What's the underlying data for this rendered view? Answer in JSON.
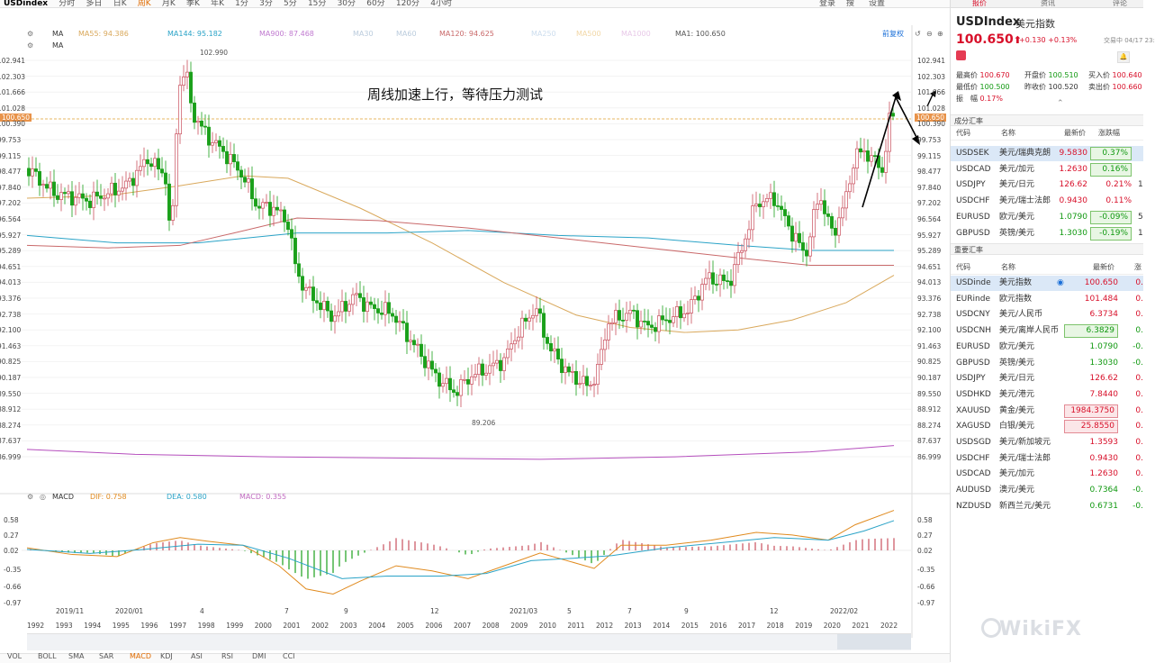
{
  "toolbar": {
    "items": [
      "USDindex",
      "分时",
      "多日",
      "日K",
      "周K",
      "月K",
      "季K",
      "年K",
      "1分",
      "3分",
      "5分",
      "15分",
      "30分",
      "60分",
      "120分",
      "4小时"
    ],
    "right_items": [
      "登录",
      "搜",
      "设置"
    ]
  },
  "indicators": {
    "ma_label": "MA",
    "ma_label2": "MA",
    "ma55": "MA55: 94.386",
    "ma144": "MA144: 95.182",
    "ma900": "MA900: 87.468",
    "ma30": "MA30",
    "ma60": "MA60",
    "ma120": "MA120: 94.625",
    "ma250": "MA250",
    "ma500": "MA500",
    "ma1000": "MA1000",
    "ma1": "MA1: 100.650",
    "right_rights": "前复权"
  },
  "macd": {
    "label": "MACD",
    "dif": "DIF: 0.758",
    "dea": "DEA: 0.580",
    "macd": "MACD: 0.355"
  },
  "annotation": "周线加速上行，等待压力测试",
  "peak_label": "102.990",
  "trough_label": "89.206",
  "current_line_label": "100.650",
  "current_line_label_right": "100.650",
  "price_axis_left": [
    "102.941",
    "102.303",
    "101.666",
    "101.028",
    "100.390",
    "99.753",
    "99.115",
    "98.477",
    "97.840",
    "97.202",
    "96.564",
    "95.927",
    "95.289",
    "94.651",
    "94.013",
    "93.376",
    "92.738",
    "92.100",
    "91.463",
    "90.825",
    "90.187",
    "89.550",
    "88.912",
    "88.274",
    "87.637",
    "86.999"
  ],
  "price_axis_right": [
    "102.941",
    "102.303",
    "101.666",
    "101.028",
    "100.390",
    "99.753",
    "99.115",
    "98.477",
    "97.840",
    "97.202",
    "96.564",
    "95.927",
    "95.289",
    "94.651",
    "94.013",
    "93.376",
    "92.738",
    "92.100",
    "91.463",
    "90.825",
    "90.187",
    "89.550",
    "88.912",
    "88.274",
    "87.637",
    "86.999"
  ],
  "macd_axis": [
    "0.58",
    "0.27",
    "0.02",
    "-0.35",
    "-0.66",
    "-0.97"
  ],
  "date_labels": [
    "2019/11",
    "2020/01",
    "4",
    "7",
    "9",
    "12",
    "2021/03",
    "5",
    "7",
    "9",
    "12",
    "2022/02"
  ],
  "year_labels": [
    "1992",
    "1993",
    "1994",
    "1995",
    "1996",
    "1997",
    "1998",
    "1999",
    "2000",
    "2001",
    "2002",
    "2003",
    "2004",
    "2005",
    "2006",
    "2007",
    "2008",
    "2009",
    "2010",
    "2011",
    "2012",
    "2013",
    "2014",
    "2015",
    "2016",
    "2017",
    "2018",
    "2019",
    "2020",
    "2021",
    "2022"
  ],
  "bottom_tabs": [
    "VOL",
    "BOLL",
    "SMA",
    "SAR",
    "MACD",
    "KDJ",
    "ASI",
    "RSI",
    "DMI",
    "CCI"
  ],
  "watermark": "WikiFX",
  "quote": {
    "tabs": [
      "报价",
      "资讯",
      "评论"
    ],
    "symbol": "USDIndex",
    "name_cn": "美元指数",
    "price": "100.650",
    "arrow": "⬆",
    "change": "+0.130 +0.13%",
    "trading_status": "交易中 04/17 23:",
    "high_label": "最高价",
    "high": "100.670",
    "open_label": "开盘价",
    "open": "100.510",
    "buy_label": "买入价",
    "buy": "100.640",
    "low_label": "最低价",
    "low": "100.500",
    "prev_label": "昨收价",
    "prev": "100.520",
    "sell_label": "卖出价",
    "sell": "100.660",
    "amp_label": "振　幅",
    "amp": "0.17%"
  },
  "components": {
    "title": "成分汇率",
    "headers": [
      "代码",
      "名称",
      "最新价",
      "涨跌幅"
    ],
    "rows": [
      {
        "code": "USDSEK",
        "name": "美元/瑞典克朗",
        "price": "9.5830",
        "pct": "0.37%",
        "dir": "up",
        "boxed": true,
        "extra": ""
      },
      {
        "code": "USDCAD",
        "name": "美元/加元",
        "price": "1.2630",
        "pct": "0.16%",
        "dir": "up",
        "boxed": true,
        "extra": ""
      },
      {
        "code": "USDJPY",
        "name": "美元/日元",
        "price": "126.62",
        "pct": "0.21%",
        "dir": "up",
        "boxed": false,
        "extra": "1"
      },
      {
        "code": "USDCHF",
        "name": "美元/瑞士法郎",
        "price": "0.9430",
        "pct": "0.11%",
        "dir": "up",
        "boxed": false,
        "extra": ""
      },
      {
        "code": "EURUSD",
        "name": "欧元/美元",
        "price": "1.0790",
        "pct": "-0.09%",
        "dir": "down",
        "boxed": true,
        "extra": "5"
      },
      {
        "code": "GBPUSD",
        "name": "英镑/美元",
        "price": "1.3030",
        "pct": "-0.19%",
        "dir": "down",
        "boxed": true,
        "extra": "1"
      }
    ]
  },
  "major": {
    "title": "重要汇率",
    "headers": [
      "代码",
      "名称",
      "最新价",
      "涨"
    ],
    "rows": [
      {
        "code": "USDinde",
        "name": "美元指数",
        "price": "100.650",
        "pct": "0.",
        "dir": "up",
        "boxed": false
      },
      {
        "code": "EURinde",
        "name": "欧元指数",
        "price": "101.484",
        "pct": "0.",
        "dir": "up",
        "boxed": false
      },
      {
        "code": "USDCNY",
        "name": "美元/人民币",
        "price": "6.3734",
        "pct": "0.",
        "dir": "up",
        "boxed": false
      },
      {
        "code": "USDCNH",
        "name": "美元/离岸人民币",
        "price": "6.3829",
        "pct": "0.",
        "dir": "down",
        "boxed": true
      },
      {
        "code": "EURUSD",
        "name": "欧元/美元",
        "price": "1.0790",
        "pct": "-0.",
        "dir": "down",
        "boxed": false
      },
      {
        "code": "GBPUSD",
        "name": "英镑/美元",
        "price": "1.3030",
        "pct": "-0.",
        "dir": "down",
        "boxed": false
      },
      {
        "code": "USDJPY",
        "name": "美元/日元",
        "price": "126.62",
        "pct": "0.",
        "dir": "up",
        "boxed": false
      },
      {
        "code": "USDHKD",
        "name": "美元/港元",
        "price": "7.8440",
        "pct": "0.",
        "dir": "up",
        "boxed": false
      },
      {
        "code": "XAUUSD",
        "name": "黄金/美元",
        "price": "1984.3750",
        "pct": "0.",
        "dir": "up",
        "boxed": true
      },
      {
        "code": "XAGUSD",
        "name": "白银/美元",
        "price": "25.8550",
        "pct": "0.",
        "dir": "up",
        "boxed": true
      },
      {
        "code": "USDSGD",
        "name": "美元/新加坡元",
        "price": "1.3593",
        "pct": "0.",
        "dir": "up",
        "boxed": false
      },
      {
        "code": "USDCHF",
        "name": "美元/瑞士法郎",
        "price": "0.9430",
        "pct": "0.",
        "dir": "up",
        "boxed": false
      },
      {
        "code": "USDCAD",
        "name": "美元/加元",
        "price": "1.2630",
        "pct": "0.",
        "dir": "up",
        "boxed": false
      },
      {
        "code": "AUDUSD",
        "name": "澳元/美元",
        "price": "0.7364",
        "pct": "-0.",
        "dir": "down",
        "boxed": false
      },
      {
        "code": "NZDUSD",
        "name": "新西兰元/美元",
        "price": "0.6731",
        "pct": "-0.",
        "dir": "down",
        "boxed": false
      }
    ]
  },
  "colors": {
    "up": "#c9505e",
    "down": "#1aa01a",
    "ma55": "#d9a85b",
    "ma144": "#2aa3c7",
    "ma900": "#b54ebd",
    "ma120": "#c9696a",
    "dif": "#e08a1e",
    "dea": "#2aa3c7"
  }
}
